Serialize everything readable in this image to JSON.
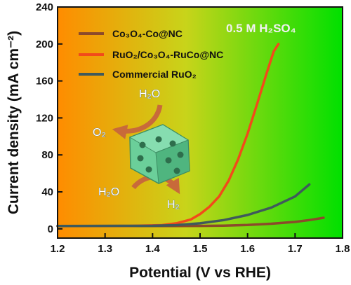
{
  "chart_data": {
    "type": "line",
    "title": "",
    "xlabel": "Potential (V vs RHE)",
    "ylabel": "Current density (mA cm⁻²)",
    "xlim": [
      1.2,
      1.8
    ],
    "ylim": [
      -10,
      240
    ],
    "xticks": [
      1.2,
      1.3,
      1.4,
      1.5,
      1.6,
      1.7,
      1.8
    ],
    "yticks": [
      0,
      40,
      80,
      120,
      160,
      200,
      240
    ],
    "grid": false,
    "legend_position": "top-left",
    "annotation": "0.5 M H₂SO₄",
    "series": [
      {
        "name": "Co₃O₄-Co@NC",
        "color": "#8B4A2B",
        "points": [
          [
            1.2,
            3
          ],
          [
            1.3,
            3
          ],
          [
            1.4,
            3
          ],
          [
            1.5,
            3.2
          ],
          [
            1.55,
            3.5
          ],
          [
            1.6,
            4.2
          ],
          [
            1.65,
            5.5
          ],
          [
            1.7,
            7.5
          ],
          [
            1.73,
            9.5
          ],
          [
            1.76,
            12
          ]
        ]
      },
      {
        "name": "RuO₂/Co₃O₄-RuCo@NC",
        "color": "#F24A1A",
        "points": [
          [
            1.2,
            3
          ],
          [
            1.35,
            3.2
          ],
          [
            1.42,
            4
          ],
          [
            1.45,
            6
          ],
          [
            1.48,
            10
          ],
          [
            1.5,
            16
          ],
          [
            1.52,
            24
          ],
          [
            1.54,
            35
          ],
          [
            1.56,
            52
          ],
          [
            1.58,
            75
          ],
          [
            1.6,
            103
          ],
          [
            1.62,
            135
          ],
          [
            1.64,
            168
          ],
          [
            1.655,
            192
          ],
          [
            1.665,
            200
          ]
        ]
      },
      {
        "name": "Commercial RuO₂",
        "color": "#3F5A5C",
        "points": [
          [
            1.2,
            3
          ],
          [
            1.4,
            3.3
          ],
          [
            1.45,
            4
          ],
          [
            1.5,
            6
          ],
          [
            1.55,
            9.5
          ],
          [
            1.6,
            15
          ],
          [
            1.65,
            23
          ],
          [
            1.7,
            35
          ],
          [
            1.73,
            48
          ]
        ]
      }
    ]
  },
  "inset": {
    "molecules": [
      "H₂O",
      "O₂",
      "H₂O",
      "H₂"
    ],
    "icon": "catalyst-cube-icon",
    "arrow_color": "#C86A3A"
  },
  "background": {
    "gradient_from": "#FF8C00",
    "gradient_to": "#00E000"
  }
}
